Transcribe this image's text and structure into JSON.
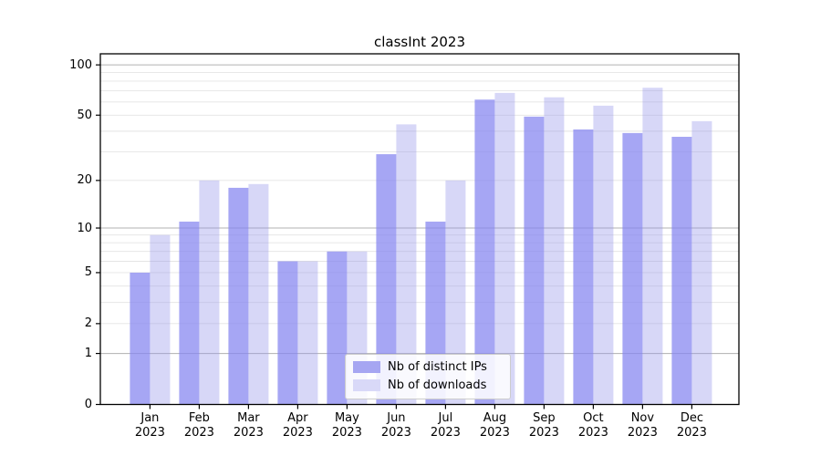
{
  "chart_data": {
    "type": "bar",
    "title": "classInt 2023",
    "categories": [
      "Jan",
      "Feb",
      "Mar",
      "Apr",
      "May",
      "Jun",
      "Jul",
      "Aug",
      "Sep",
      "Oct",
      "Nov",
      "Dec"
    ],
    "x_tick_second_line": "2023",
    "series": [
      {
        "name": "Nb of distinct IPs",
        "values": [
          5,
          11,
          18,
          6,
          7,
          29,
          11,
          62,
          49,
          41,
          39,
          37
        ],
        "bar_color": "rgba(132,132,240,0.72)",
        "legend_color": "#a6a6f2"
      },
      {
        "name": "Nb of downloads",
        "values": [
          9,
          20,
          19,
          6,
          7,
          44,
          20,
          68,
          64,
          57,
          73,
          46
        ],
        "bar_color": "rgba(150,150,235,0.38)",
        "legend_color": "#d9d9f8"
      }
    ],
    "yscale": "log1p",
    "ylim": [
      0,
      116
    ],
    "yticks": [
      0,
      1,
      2,
      5,
      10,
      20,
      50,
      100
    ],
    "major_grid_values": [
      1,
      10,
      100
    ],
    "minor_grid_values": [
      2,
      3,
      4,
      5,
      6,
      7,
      8,
      9,
      20,
      30,
      40,
      50,
      60,
      70,
      80,
      90
    ],
    "grid": true,
    "legend_position": "lower center",
    "colors": {
      "grid_major": "#b0b0b0",
      "grid_minor": "#e4e4e4",
      "axis": "#000000"
    }
  }
}
